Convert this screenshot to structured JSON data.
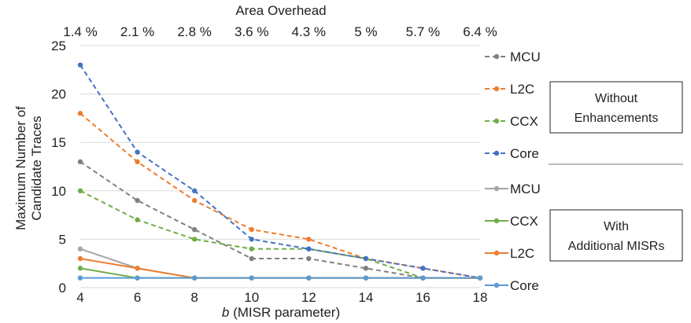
{
  "chart_data": {
    "type": "line",
    "top_axis_title": "Area Overhead",
    "top_tick_labels": [
      "1.4 %",
      "2.1 %",
      "2.8 %",
      "3.6 %",
      "4.3 %",
      "5 %",
      "5.7 %",
      "6.4 %"
    ],
    "ylabel_line1": "Maximum Number of",
    "ylabel_line2": "Candidate Traces",
    "xlabel_italic": "b",
    "xlabel_rest": " (MISR parameter)",
    "x": [
      4,
      6,
      8,
      10,
      12,
      14,
      16,
      18
    ],
    "xlim": [
      4,
      18
    ],
    "ylim": [
      0,
      25
    ],
    "yticks": [
      0,
      5,
      10,
      15,
      20,
      25
    ],
    "grid": "horizontal",
    "legend_placement": "right",
    "series": [
      {
        "name": "MCU",
        "group": "without",
        "dashed": true,
        "color": "#808080",
        "values": [
          13,
          9,
          6,
          3,
          3,
          2,
          1,
          1
        ]
      },
      {
        "name": "L2C",
        "group": "without",
        "dashed": true,
        "color": "#ED7D31",
        "values": [
          18,
          13,
          9,
          6,
          5,
          3,
          2,
          1
        ]
      },
      {
        "name": "CCX",
        "group": "without",
        "dashed": true,
        "color": "#70AD47",
        "values": [
          10,
          7,
          5,
          4,
          4,
          3,
          1,
          1
        ]
      },
      {
        "name": "Core",
        "group": "without",
        "dashed": true,
        "color": "#4472C4",
        "values": [
          23,
          14,
          10,
          5,
          4,
          3,
          2,
          1
        ]
      },
      {
        "name": "MCU",
        "group": "with",
        "dashed": false,
        "color": "#A5A5A5",
        "values": [
          4,
          2,
          1,
          1,
          1,
          1,
          1,
          1
        ]
      },
      {
        "name": "CCX",
        "group": "with",
        "dashed": false,
        "color": "#70AD47",
        "values": [
          2,
          1,
          1,
          1,
          1,
          1,
          1,
          1
        ]
      },
      {
        "name": "L2C",
        "group": "with",
        "dashed": false,
        "color": "#ED7D31",
        "values": [
          3,
          2,
          1,
          1,
          1,
          1,
          1,
          1
        ]
      },
      {
        "name": "Core",
        "group": "with",
        "dashed": false,
        "color": "#5B9BD5",
        "values": [
          1,
          1,
          1,
          1,
          1,
          1,
          1,
          1
        ]
      }
    ],
    "annotations": {
      "without_line1": "Without",
      "without_line2": "Enhancements",
      "with_line1": "With",
      "with_line2": "Additional MISRs"
    }
  }
}
